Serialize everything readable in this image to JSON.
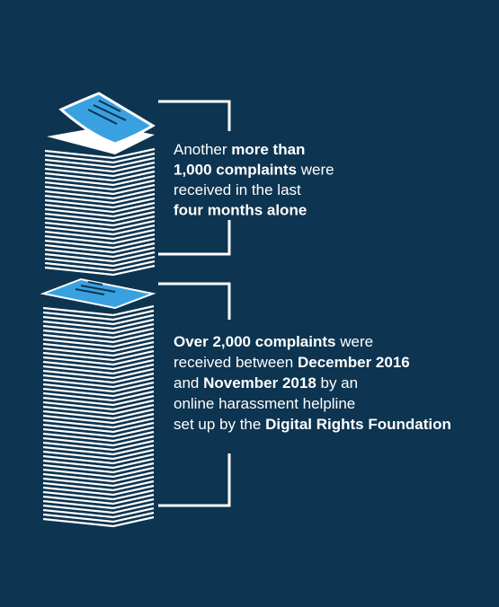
{
  "blocks": [
    {
      "lines": [
        [
          {
            "text": "Another ",
            "bold": false
          },
          {
            "text": "more than",
            "bold": true
          }
        ],
        [
          {
            "text": "1,000 complaints",
            "bold": true
          },
          {
            "text": " were",
            "bold": false
          }
        ],
        [
          {
            "text": "received in the last",
            "bold": false
          }
        ],
        [
          {
            "text": "four months alone",
            "bold": true
          }
        ]
      ]
    },
    {
      "lines": [
        [
          {
            "text": "Over 2,000 complaints",
            "bold": true
          },
          {
            "text": " were",
            "bold": false
          }
        ],
        [
          {
            "text": "received between ",
            "bold": false
          },
          {
            "text": "December 2016",
            "bold": true
          }
        ],
        [
          {
            "text": "and ",
            "bold": false
          },
          {
            "text": "November 2018",
            "bold": true
          },
          {
            "text": " by an",
            "bold": false
          }
        ],
        [
          {
            "text": "online harassment helpline",
            "bold": false
          }
        ],
        [
          {
            "text": "set up by the ",
            "bold": false
          },
          {
            "text": "Digital Rights Foundation",
            "bold": true
          }
        ]
      ]
    }
  ]
}
